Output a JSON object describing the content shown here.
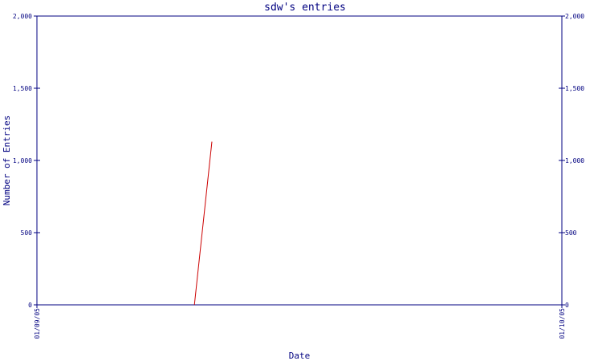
{
  "chart_data": {
    "type": "line",
    "title": "sdw's entries",
    "xlabel": "Date",
    "ylabel": "Number of Entries",
    "ylim": [
      0,
      2000
    ],
    "yticks": [
      0,
      500,
      1000,
      1500,
      2000
    ],
    "ytick_labels": [
      "0",
      "500",
      "1,000",
      "1,500",
      "2,000"
    ],
    "xlim": [
      "2005-09-01",
      "2005-10-01"
    ],
    "xtick_labels": [
      "01/09/05",
      "01/10/05"
    ],
    "grid": false,
    "series": [
      {
        "x": [
          "2005-09-10",
          "2005-09-11"
        ],
        "y": [
          0,
          1130
        ]
      }
    ]
  },
  "colors": {
    "axis": "#000080",
    "line": "#cc0000",
    "title": "#000080",
    "text": "#000080"
  }
}
